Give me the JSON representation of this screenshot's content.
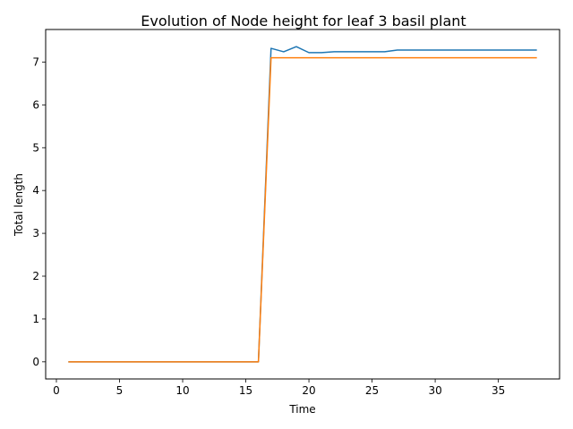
{
  "chart_data": {
    "type": "line",
    "title": "Evolution of Node height for leaf 3 basil plant",
    "xlabel": "Time",
    "ylabel": "Total length",
    "xlim": [
      -0.85,
      39.85
    ],
    "ylim": [
      -0.4,
      7.76
    ],
    "xticks": [
      0,
      5,
      10,
      15,
      20,
      25,
      30,
      35
    ],
    "yticks": [
      0,
      1,
      2,
      3,
      4,
      5,
      6,
      7
    ],
    "grid": false,
    "legend": "none",
    "series": [
      {
        "color": "#1f77b4",
        "x": [
          1,
          2,
          3,
          4,
          5,
          6,
          7,
          8,
          9,
          10,
          11,
          12,
          13,
          14,
          15,
          16,
          17,
          18,
          19,
          20,
          21,
          22,
          23,
          24,
          25,
          26,
          27,
          28,
          29,
          30,
          31,
          32,
          33,
          34,
          35,
          36,
          37,
          38
        ],
        "y": [
          0,
          0,
          0,
          0,
          0,
          0,
          0,
          0,
          0,
          0,
          0,
          0,
          0,
          0,
          0,
          0,
          7.32,
          7.24,
          7.36,
          7.22,
          7.22,
          7.24,
          7.24,
          7.24,
          7.24,
          7.24,
          7.28,
          7.28,
          7.28,
          7.28,
          7.28,
          7.28,
          7.28,
          7.28,
          7.28,
          7.28,
          7.28,
          7.28
        ]
      },
      {
        "color": "#ff7f0e",
        "x": [
          1,
          2,
          3,
          4,
          5,
          6,
          7,
          8,
          9,
          10,
          11,
          12,
          13,
          14,
          15,
          16,
          17,
          18,
          19,
          20,
          21,
          22,
          23,
          24,
          25,
          26,
          27,
          28,
          29,
          30,
          31,
          32,
          33,
          34,
          35,
          36,
          37,
          38
        ],
        "y": [
          0,
          0,
          0,
          0,
          0,
          0,
          0,
          0,
          0,
          0,
          0,
          0,
          0,
          0,
          0,
          0,
          7.1,
          7.1,
          7.1,
          7.1,
          7.1,
          7.1,
          7.1,
          7.1,
          7.1,
          7.1,
          7.1,
          7.1,
          7.1,
          7.1,
          7.1,
          7.1,
          7.1,
          7.1,
          7.1,
          7.1,
          7.1,
          7.1
        ]
      }
    ]
  }
}
